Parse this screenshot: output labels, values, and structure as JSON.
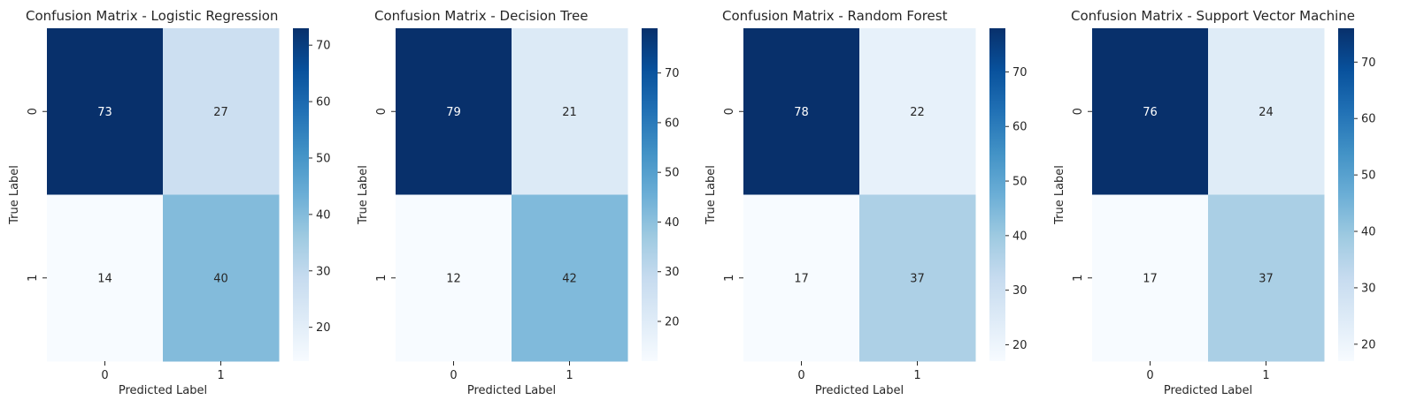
{
  "chart_data": [
    {
      "type": "heatmap",
      "title": "Confusion Matrix - Logistic Regression",
      "xlabel": "Predicted Label",
      "ylabel": "True Label",
      "x_categories": [
        "0",
        "1"
      ],
      "y_categories": [
        "0",
        "1"
      ],
      "values": [
        [
          73,
          27
        ],
        [
          14,
          40
        ]
      ],
      "colormap": "Blues",
      "colorbar": {
        "min": 14,
        "max": 73,
        "ticks": [
          20,
          30,
          40,
          50,
          60,
          70
        ]
      }
    },
    {
      "type": "heatmap",
      "title": "Confusion Matrix - Decision Tree",
      "xlabel": "Predicted Label",
      "ylabel": "True Label",
      "x_categories": [
        "0",
        "1"
      ],
      "y_categories": [
        "0",
        "1"
      ],
      "values": [
        [
          79,
          21
        ],
        [
          12,
          42
        ]
      ],
      "colormap": "Blues",
      "colorbar": {
        "min": 12,
        "max": 79,
        "ticks": [
          20,
          30,
          40,
          50,
          60,
          70
        ]
      }
    },
    {
      "type": "heatmap",
      "title": "Confusion Matrix - Random Forest",
      "xlabel": "Predicted Label",
      "ylabel": "True Label",
      "x_categories": [
        "0",
        "1"
      ],
      "y_categories": [
        "0",
        "1"
      ],
      "values": [
        [
          78,
          22
        ],
        [
          17,
          37
        ]
      ],
      "colormap": "Blues",
      "colorbar": {
        "min": 17,
        "max": 78,
        "ticks": [
          20,
          30,
          40,
          50,
          60,
          70
        ]
      }
    },
    {
      "type": "heatmap",
      "title": "Confusion Matrix - Support Vector Machine",
      "xlabel": "Predicted Label",
      "ylabel": "True Label",
      "x_categories": [
        "0",
        "1"
      ],
      "y_categories": [
        "0",
        "1"
      ],
      "values": [
        [
          76,
          24
        ],
        [
          17,
          37
        ]
      ],
      "colormap": "Blues",
      "colorbar": {
        "min": 17,
        "max": 76,
        "ticks": [
          20,
          30,
          40,
          50,
          60,
          70
        ]
      }
    }
  ]
}
